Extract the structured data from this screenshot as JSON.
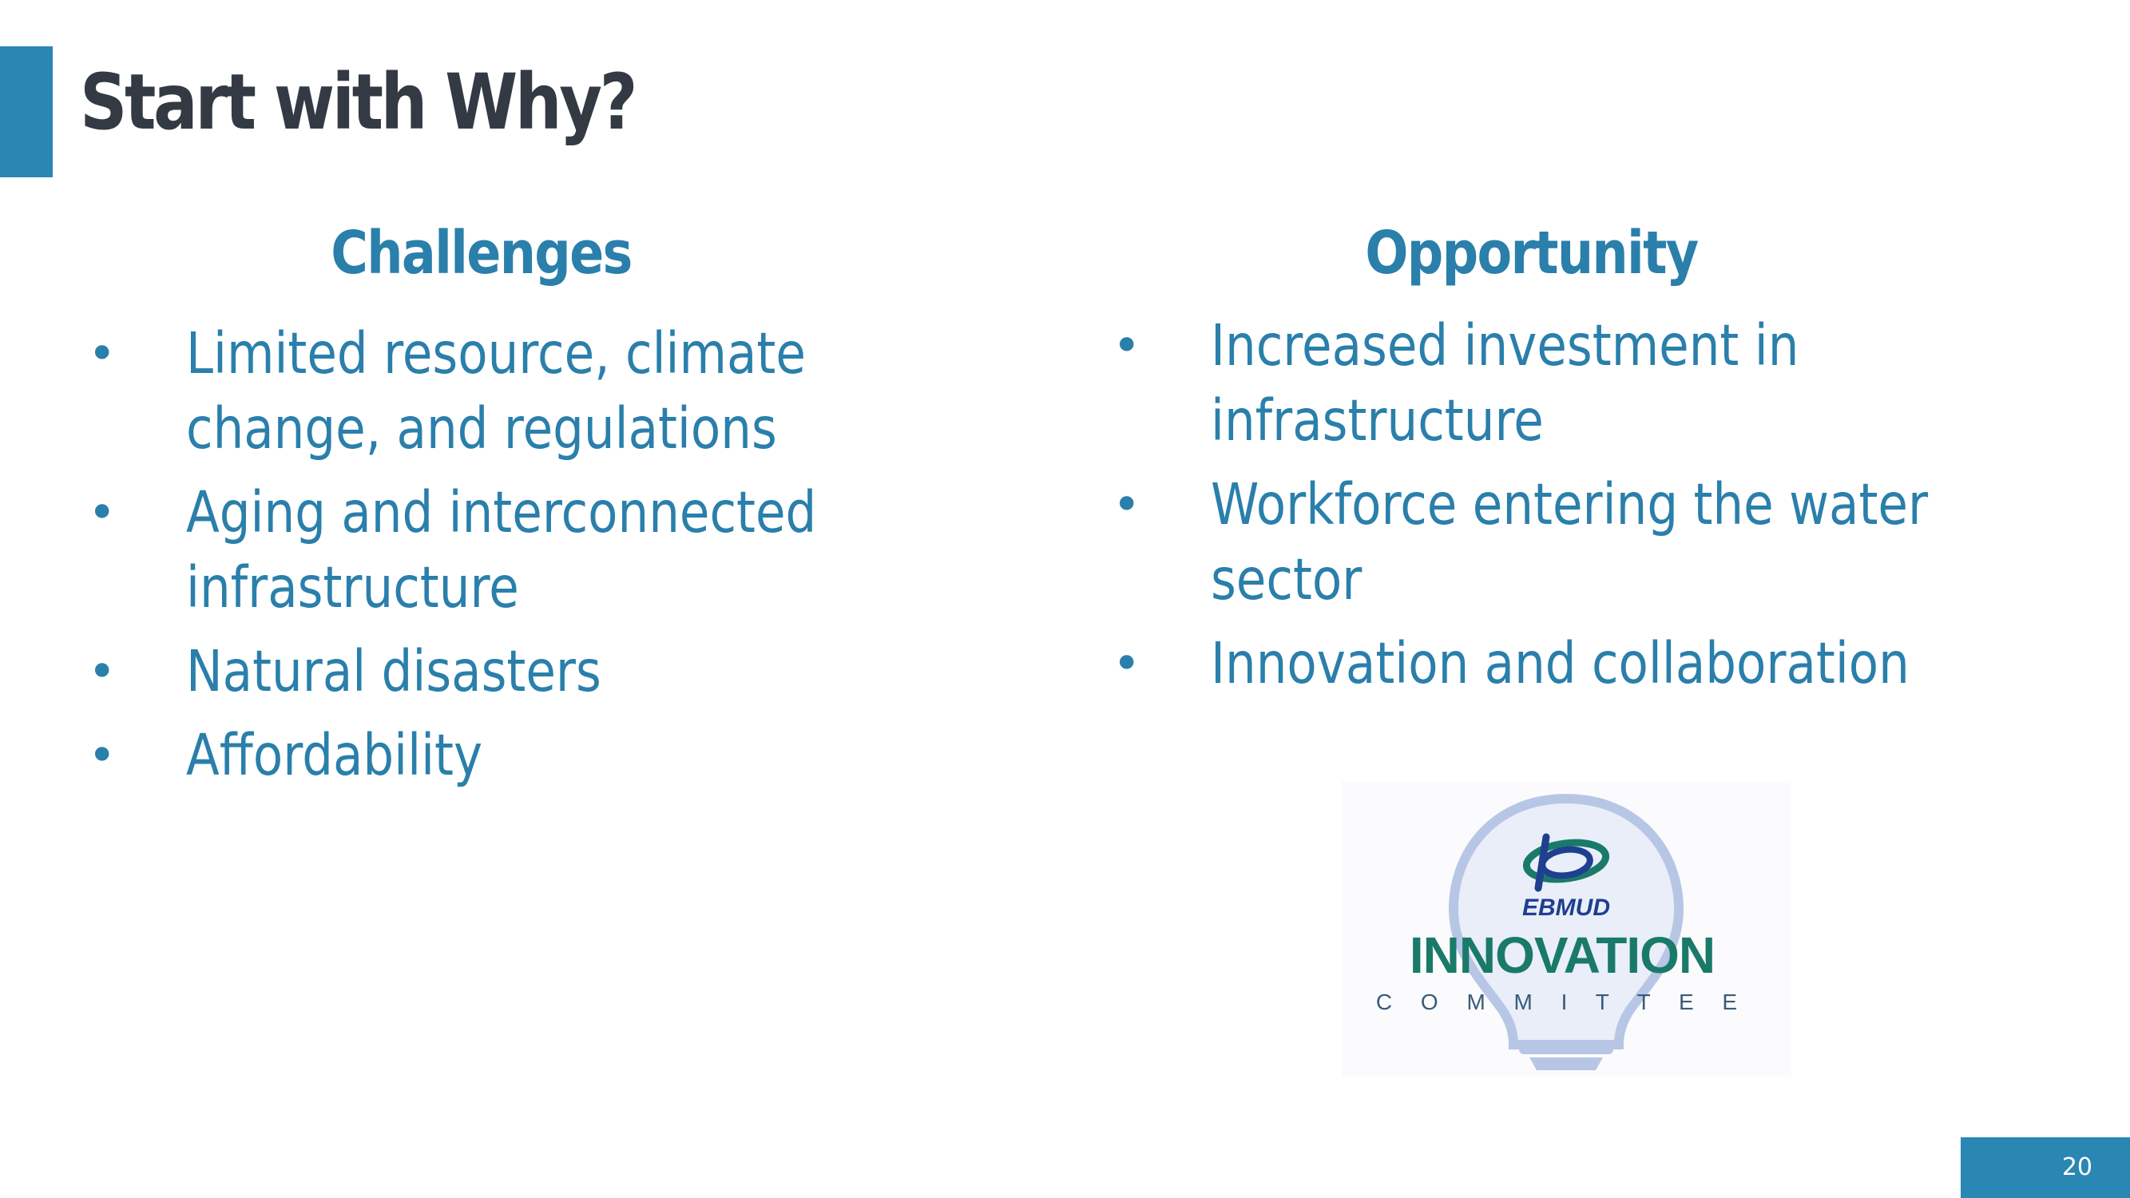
{
  "slide": {
    "title": "Start with Why?",
    "page_number": "20"
  },
  "challenges": {
    "heading": "Challenges",
    "items": [
      "Limited resource, climate change, and regulations",
      "Aging and interconnected infrastructure",
      "Natural disasters",
      "Affordability"
    ]
  },
  "opportunity": {
    "heading": "Opportunity",
    "items": [
      "Increased investment in infrastructure",
      "Workforce entering the water sector",
      "Innovation and collaboration"
    ]
  },
  "logo": {
    "brand": "EBMUD",
    "wordmark": "INNOVATION",
    "subtitle": "C O M M I T T E E"
  },
  "colors": {
    "accent": "#2a86b3",
    "text_blue": "#2a7fab",
    "title_dark": "#333a44",
    "logo_green": "#1a7a6a",
    "logo_navy": "#1f3f8f",
    "bulb_light": "#b8c6e6"
  }
}
